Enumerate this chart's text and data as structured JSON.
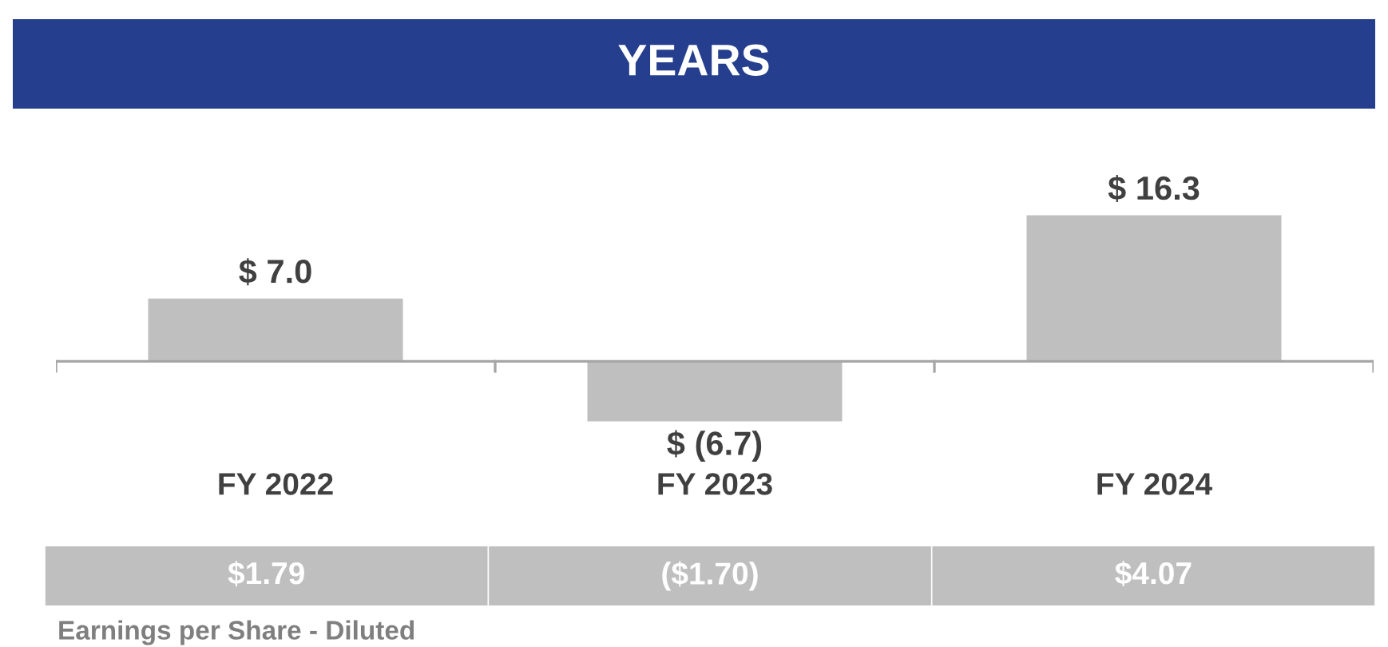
{
  "chart_data": {
    "type": "bar",
    "title": "YEARS",
    "categories": [
      "FY 2022",
      "FY 2023",
      "FY 2024"
    ],
    "values": [
      7.0,
      -6.7,
      16.3
    ],
    "color": "#bfbfbf",
    "value_labels": [
      "$ 7.0",
      "$ (6.7)",
      "$ 16.3"
    ],
    "annotations": [
      "$1.79",
      "($1.70)",
      "$4.07",
      "Earnings per Share - Diluted"
    ],
    "grid": false,
    "legend": false
  }
}
